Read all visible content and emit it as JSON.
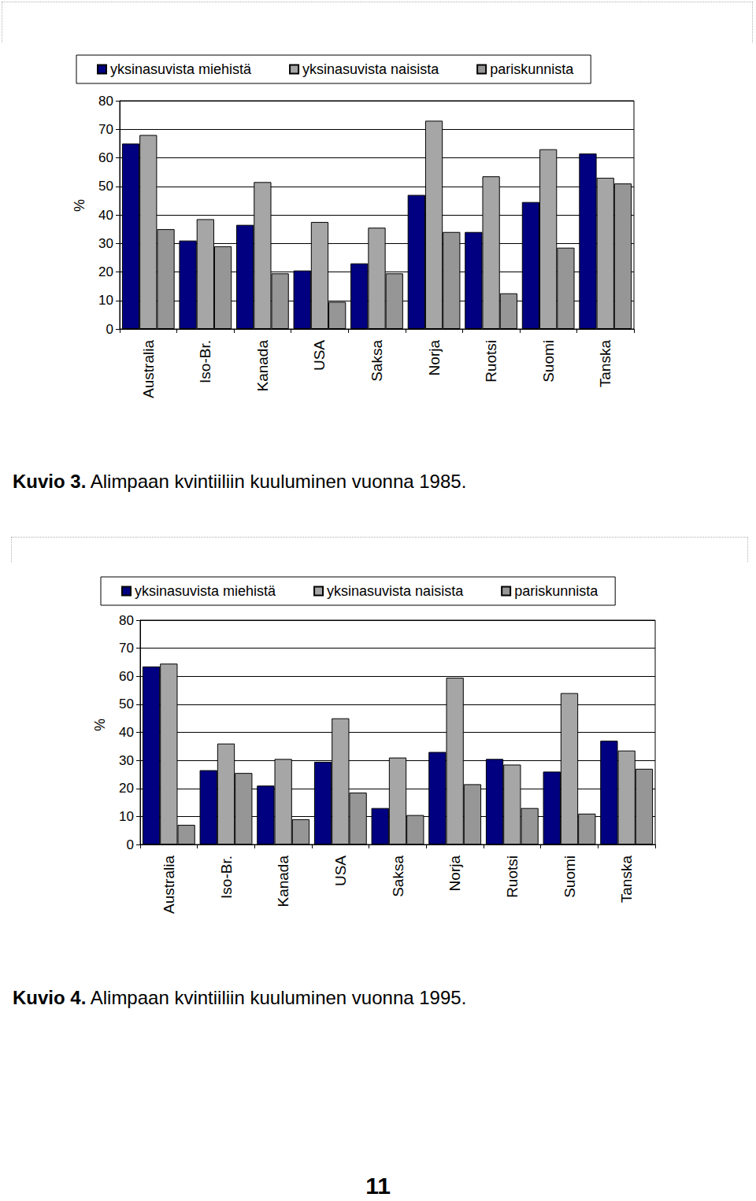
{
  "chart_data": [
    {
      "type": "bar",
      "title": "Kuvio 3. Alimpaan kvintiiliin kuuluminen vuonna 1985.",
      "y_label": "%",
      "categories": [
        "Australia",
        "Iso-Br.",
        "Kanada",
        "USA",
        "Saksa",
        "Norja",
        "Ruotsi",
        "Suomi",
        "Tanska"
      ],
      "series": [
        {
          "name": "yksinasuvista miehistä",
          "color": "#000080",
          "values": [
            65,
            31,
            36.5,
            20.5,
            23,
            47,
            34,
            44.5,
            61.5
          ]
        },
        {
          "name": "yksinasuvista naisista",
          "color": "#a6a6a6",
          "values": [
            68,
            38.5,
            51.5,
            37.5,
            35.5,
            73,
            53.5,
            63,
            53
          ]
        },
        {
          "name": "pariskunnista",
          "color": "#969696",
          "values": [
            35,
            29,
            19.5,
            9.5,
            19.5,
            34,
            12.5,
            28.5,
            51
          ]
        }
      ],
      "ylim": [
        0,
        80
      ],
      "yticks": [
        0,
        10,
        20,
        30,
        40,
        50,
        60,
        70,
        80
      ],
      "grid": true,
      "legend": "top"
    },
    {
      "type": "bar",
      "title": "Kuvio 4. Alimpaan kvintiiliin kuuluminen vuonna 1995.",
      "y_label": "%",
      "categories": [
        "Australia",
        "Iso-Br.",
        "Kanada",
        "USA",
        "Saksa",
        "Norja",
        "Ruotsi",
        "Suomi",
        "Tanska"
      ],
      "series": [
        {
          "name": "yksinasuvista miehistä",
          "color": "#000080",
          "values": [
            63.5,
            26.5,
            21,
            29.5,
            13,
            33,
            30.5,
            26,
            37
          ]
        },
        {
          "name": "yksinasuvista naisista",
          "color": "#a6a6a6",
          "values": [
            64.5,
            36,
            30.5,
            45,
            31,
            59.5,
            28.5,
            54,
            33.5
          ]
        },
        {
          "name": "pariskunnista",
          "color": "#969696",
          "values": [
            7,
            25.5,
            9,
            18.5,
            10.5,
            21.5,
            13,
            11,
            27
          ]
        }
      ],
      "ylim": [
        0,
        80
      ],
      "yticks": [
        0,
        10,
        20,
        30,
        40,
        50,
        60,
        70,
        80
      ],
      "grid": true,
      "legend": "top"
    }
  ],
  "page": {
    "number": 11
  }
}
